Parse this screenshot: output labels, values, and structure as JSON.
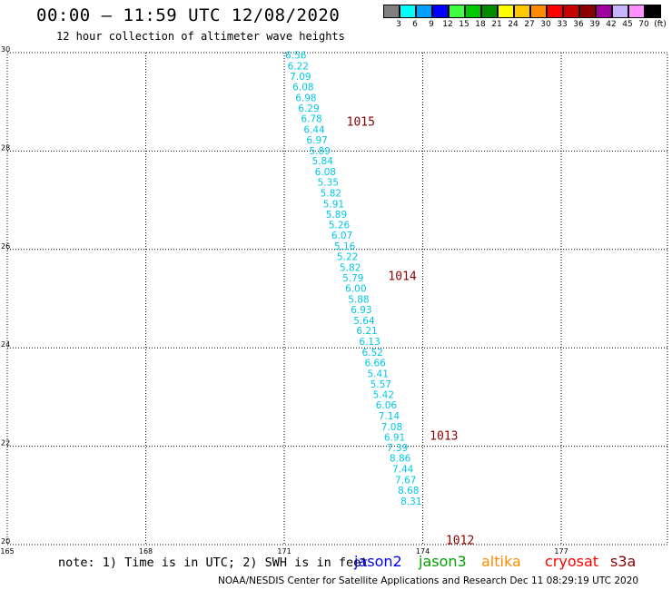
{
  "header": {
    "title": "00:00 – 11:59 UTC 12/08/2020",
    "subtitle": "12 hour collection of altimeter wave heights"
  },
  "color_scale": {
    "swatches": [
      {
        "label": "3",
        "color": "#808080"
      },
      {
        "label": "6",
        "color": "#00ffff"
      },
      {
        "label": "9",
        "color": "#00a0ff"
      },
      {
        "label": "12",
        "color": "#0000ff"
      },
      {
        "label": "15",
        "color": "#40ff40"
      },
      {
        "label": "18",
        "color": "#00c800"
      },
      {
        "label": "21",
        "color": "#008c00"
      },
      {
        "label": "24",
        "color": "#ffff00"
      },
      {
        "label": "27",
        "color": "#ffc800"
      },
      {
        "label": "30",
        "color": "#ff8c00"
      },
      {
        "label": "33",
        "color": "#ff0000"
      },
      {
        "label": "36",
        "color": "#c80000"
      },
      {
        "label": "39",
        "color": "#8c0000"
      },
      {
        "label": "42",
        "color": "#a000a0"
      },
      {
        "label": "45",
        "color": "#c8b4ff"
      },
      {
        "label": "70",
        "color": "#ff90ff"
      },
      {
        "label": "(ft)",
        "color": "#000000"
      }
    ]
  },
  "map": {
    "lat_ticks": [
      {
        "label": "30",
        "v": 30
      },
      {
        "label": "28",
        "v": 28
      },
      {
        "label": "26",
        "v": 26
      },
      {
        "label": "24",
        "v": 24
      },
      {
        "label": "22",
        "v": 22
      },
      {
        "label": "20",
        "v": 20
      }
    ],
    "lon_ticks": [
      {
        "label": "165",
        "v": 165
      },
      {
        "label": "168",
        "v": 168
      },
      {
        "label": "171",
        "v": 171
      },
      {
        "label": "174",
        "v": 174
      },
      {
        "label": "177",
        "v": 177
      }
    ],
    "lat_range": [
      20,
      30
    ],
    "lon_range": [
      165,
      179.3
    ],
    "observations": [
      {
        "label": "6.56",
        "lon": 171.25,
        "lat": 29.95
      },
      {
        "label": "6.22",
        "lon": 171.3,
        "lat": 29.73
      },
      {
        "label": "7.09",
        "lon": 171.35,
        "lat": 29.52
      },
      {
        "label": "6.08",
        "lon": 171.41,
        "lat": 29.31
      },
      {
        "label": "6.98",
        "lon": 171.47,
        "lat": 29.09
      },
      {
        "label": "6.29",
        "lon": 171.53,
        "lat": 28.87
      },
      {
        "label": "6.78",
        "lon": 171.59,
        "lat": 28.66
      },
      {
        "label": "6.44",
        "lon": 171.65,
        "lat": 28.44
      },
      {
        "label": "6.97",
        "lon": 171.71,
        "lat": 28.23
      },
      {
        "label": "5.89",
        "lon": 171.77,
        "lat": 28.01
      },
      {
        "label": "5.84",
        "lon": 171.83,
        "lat": 27.8
      },
      {
        "label": "6.08",
        "lon": 171.89,
        "lat": 27.58
      },
      {
        "label": "5.35",
        "lon": 171.95,
        "lat": 27.37
      },
      {
        "label": "5.82",
        "lon": 172.01,
        "lat": 27.15
      },
      {
        "label": "5.91",
        "lon": 172.07,
        "lat": 26.93
      },
      {
        "label": "5.89",
        "lon": 172.13,
        "lat": 26.72
      },
      {
        "label": "5.26",
        "lon": 172.19,
        "lat": 26.5
      },
      {
        "label": "6.07",
        "lon": 172.25,
        "lat": 26.29
      },
      {
        "label": "5.16",
        "lon": 172.31,
        "lat": 26.07
      },
      {
        "label": "5.22",
        "lon": 172.37,
        "lat": 25.86
      },
      {
        "label": "5.82",
        "lon": 172.43,
        "lat": 25.64
      },
      {
        "label": "5.79",
        "lon": 172.49,
        "lat": 25.42
      },
      {
        "label": "6.00",
        "lon": 172.55,
        "lat": 25.21
      },
      {
        "label": "5.88",
        "lon": 172.61,
        "lat": 24.99
      },
      {
        "label": "6.93",
        "lon": 172.67,
        "lat": 24.78
      },
      {
        "label": "5.64",
        "lon": 172.73,
        "lat": 24.56
      },
      {
        "label": "6.21",
        "lon": 172.79,
        "lat": 24.35
      },
      {
        "label": "6.13",
        "lon": 172.85,
        "lat": 24.13
      },
      {
        "label": "6.52",
        "lon": 172.91,
        "lat": 23.91
      },
      {
        "label": "6.66",
        "lon": 172.97,
        "lat": 23.7
      },
      {
        "label": "5.41",
        "lon": 173.03,
        "lat": 23.48
      },
      {
        "label": "5.57",
        "lon": 173.09,
        "lat": 23.27
      },
      {
        "label": "5.42",
        "lon": 173.15,
        "lat": 23.05
      },
      {
        "label": "6.06",
        "lon": 173.21,
        "lat": 22.84
      },
      {
        "label": "7.14",
        "lon": 173.27,
        "lat": 22.62
      },
      {
        "label": "7.08",
        "lon": 173.33,
        "lat": 22.4
      },
      {
        "label": "6.91",
        "lon": 173.39,
        "lat": 22.19
      },
      {
        "label": "7.39",
        "lon": 173.45,
        "lat": 21.97
      },
      {
        "label": "8.86",
        "lon": 173.51,
        "lat": 21.76
      },
      {
        "label": "7.44",
        "lon": 173.57,
        "lat": 21.54
      },
      {
        "label": "7.67",
        "lon": 173.63,
        "lat": 21.32
      },
      {
        "label": "8.68",
        "lon": 173.69,
        "lat": 21.11
      },
      {
        "label": "8.31",
        "lon": 173.75,
        "lat": 20.89
      }
    ],
    "pressure_labels": [
      {
        "label": "1015",
        "lon": 172.35,
        "lat": 28.61
      },
      {
        "label": "1014",
        "lon": 173.25,
        "lat": 25.47
      },
      {
        "label": "1013",
        "lon": 174.15,
        "lat": 22.22
      },
      {
        "label": "1012",
        "lon": 174.5,
        "lat": 20.1
      }
    ]
  },
  "footer": {
    "note": "note: 1) Time is in UTC; 2) SWH is in feet",
    "satellites": [
      {
        "name": "jason2",
        "color": "#0000ff"
      },
      {
        "name": "jason3",
        "color": "#00a000"
      },
      {
        "name": "altika",
        "color": "#ff8c00"
      },
      {
        "name": "cryosat",
        "color": "#ff0000"
      },
      {
        "name": "s3a",
        "color": "#8b0000"
      }
    ],
    "credit": "NOAA/NESDIS Center for Satellite Applications and Research     Dec 11 08:29:19 UTC 2020"
  }
}
